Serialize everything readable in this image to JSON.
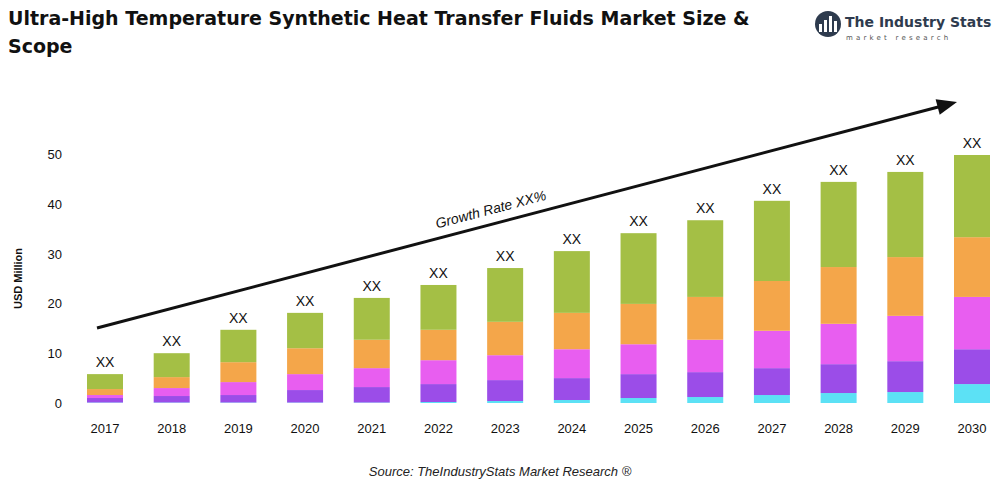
{
  "chart_data": {
    "type": "bar",
    "stacked": true,
    "title": "Ultra-High Temperature Synthetic Heat Transfer Fluids Market Size & Scope",
    "y_label": "USD Million",
    "annotations": [
      "Growth Rate XX%"
    ],
    "source": "Source: TheIndustryStats Market Research ®",
    "brand": "The Industry Stats",
    "brand_tagline": "market research",
    "categories": [
      "2017",
      "2018",
      "2019",
      "2020",
      "2021",
      "2022",
      "2023",
      "2024",
      "2025",
      "2026",
      "2027",
      "2028",
      "2029",
      "2030"
    ],
    "bar_labels": [
      "XX",
      "XX",
      "XX",
      "XX",
      "XX",
      "XX",
      "XX",
      "XX",
      "XX",
      "XX",
      "XX",
      "XX",
      "XX",
      "XX"
    ],
    "series": [
      {
        "color": "#5ce1f5",
        "values": [
          0.1,
          0.1,
          0.1,
          0.1,
          0.1,
          0.2,
          0.4,
          0.6,
          1,
          1.2,
          1.6,
          2,
          2.2,
          3.8
        ]
      },
      {
        "color": "#9b4de8",
        "values": [
          0.9,
          1.3,
          1.5,
          2.5,
          3.1,
          3.6,
          4.2,
          4.4,
          4.8,
          5,
          5.4,
          5.8,
          6.2,
          7
        ]
      },
      {
        "color": "#e85ef0",
        "values": [
          0.6,
          1.6,
          2.6,
          3.2,
          3.8,
          4.8,
          5,
          5.8,
          6,
          6.5,
          7.5,
          8.1,
          9.1,
          10.5
        ]
      },
      {
        "color": "#f4a64a",
        "values": [
          1.2,
          2.2,
          4,
          5.2,
          5.7,
          6.1,
          6.7,
          7.3,
          8.1,
          8.6,
          10,
          11.4,
          11.8,
          12
        ]
      },
      {
        "color": "#a4bf45",
        "values": [
          3,
          4.8,
          6.5,
          7.1,
          8.4,
          9,
          10.8,
          12.4,
          14.2,
          15.4,
          16.1,
          17.1,
          17.1,
          16.5
        ]
      }
    ],
    "ylim": [
      0,
      50
    ],
    "yticks": [
      0,
      10,
      20,
      30,
      40,
      50
    ],
    "grid": false
  }
}
